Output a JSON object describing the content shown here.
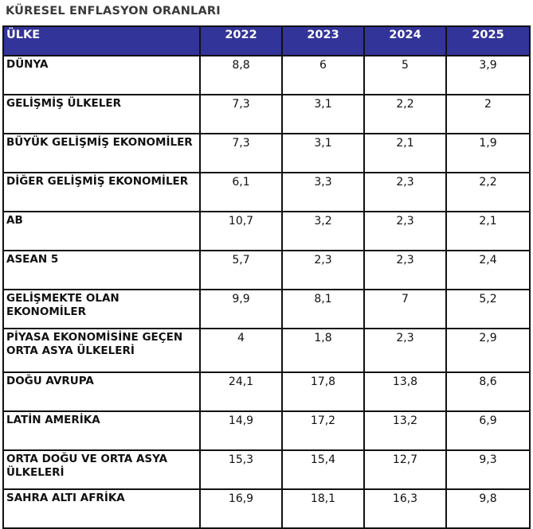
{
  "title": "KÜRESEL ENFLASYON ORANLARI",
  "colors": {
    "header_bg": "#33349a",
    "header_text": "#ffffff"
  },
  "table": {
    "headers": [
      "ÜLKE",
      "2022",
      "2023",
      "2024",
      "2025"
    ],
    "rows": [
      {
        "name": "DÜNYA",
        "values": [
          "8,8",
          "6",
          "5",
          "3,9"
        ]
      },
      {
        "name": "GELİŞMİŞ ÜLKELER",
        "values": [
          "7,3",
          "3,1",
          "2,2",
          "2"
        ]
      },
      {
        "name": "BÜYÜK GELİŞMİŞ EKONOMİLER",
        "values": [
          "7,3",
          "3,1",
          "2,1",
          "1,9"
        ]
      },
      {
        "name": "DİĞER GELİŞMİŞ EKONOMİLER",
        "values": [
          "6,1",
          "3,3",
          "2,3",
          "2,2"
        ]
      },
      {
        "name": "AB",
        "values": [
          "10,7",
          "3,2",
          "2,3",
          "2,1"
        ]
      },
      {
        "name": "ASEAN 5",
        "values": [
          "5,7",
          "2,3",
          "2,3",
          "2,4"
        ]
      },
      {
        "name": "GELİŞMEKTE OLAN EKONOMİLER",
        "values": [
          "9,9",
          "8,1",
          "7",
          "5,2"
        ]
      },
      {
        "name": "PİYASA EKONOMİSİNE GEÇEN ORTA ASYA ÜLKELERİ",
        "values": [
          "4",
          "1,8",
          "2,3",
          "2,9"
        ]
      },
      {
        "name": "DOĞU AVRUPA",
        "values": [
          "24,1",
          "17,8",
          "13,8",
          "8,6"
        ]
      },
      {
        "name": "LATİN AMERİKA",
        "values": [
          "14,9",
          "17,2",
          "13,2",
          "6,9"
        ]
      },
      {
        "name": "ORTA DOĞU VE ORTA ASYA ÜLKELERİ",
        "values": [
          "15,3",
          "15,4",
          "12,7",
          "9,3"
        ]
      },
      {
        "name": "SAHRA ALTI AFRİKA",
        "values": [
          "16,9",
          "18,1",
          "16,3",
          "9,8"
        ]
      }
    ]
  }
}
